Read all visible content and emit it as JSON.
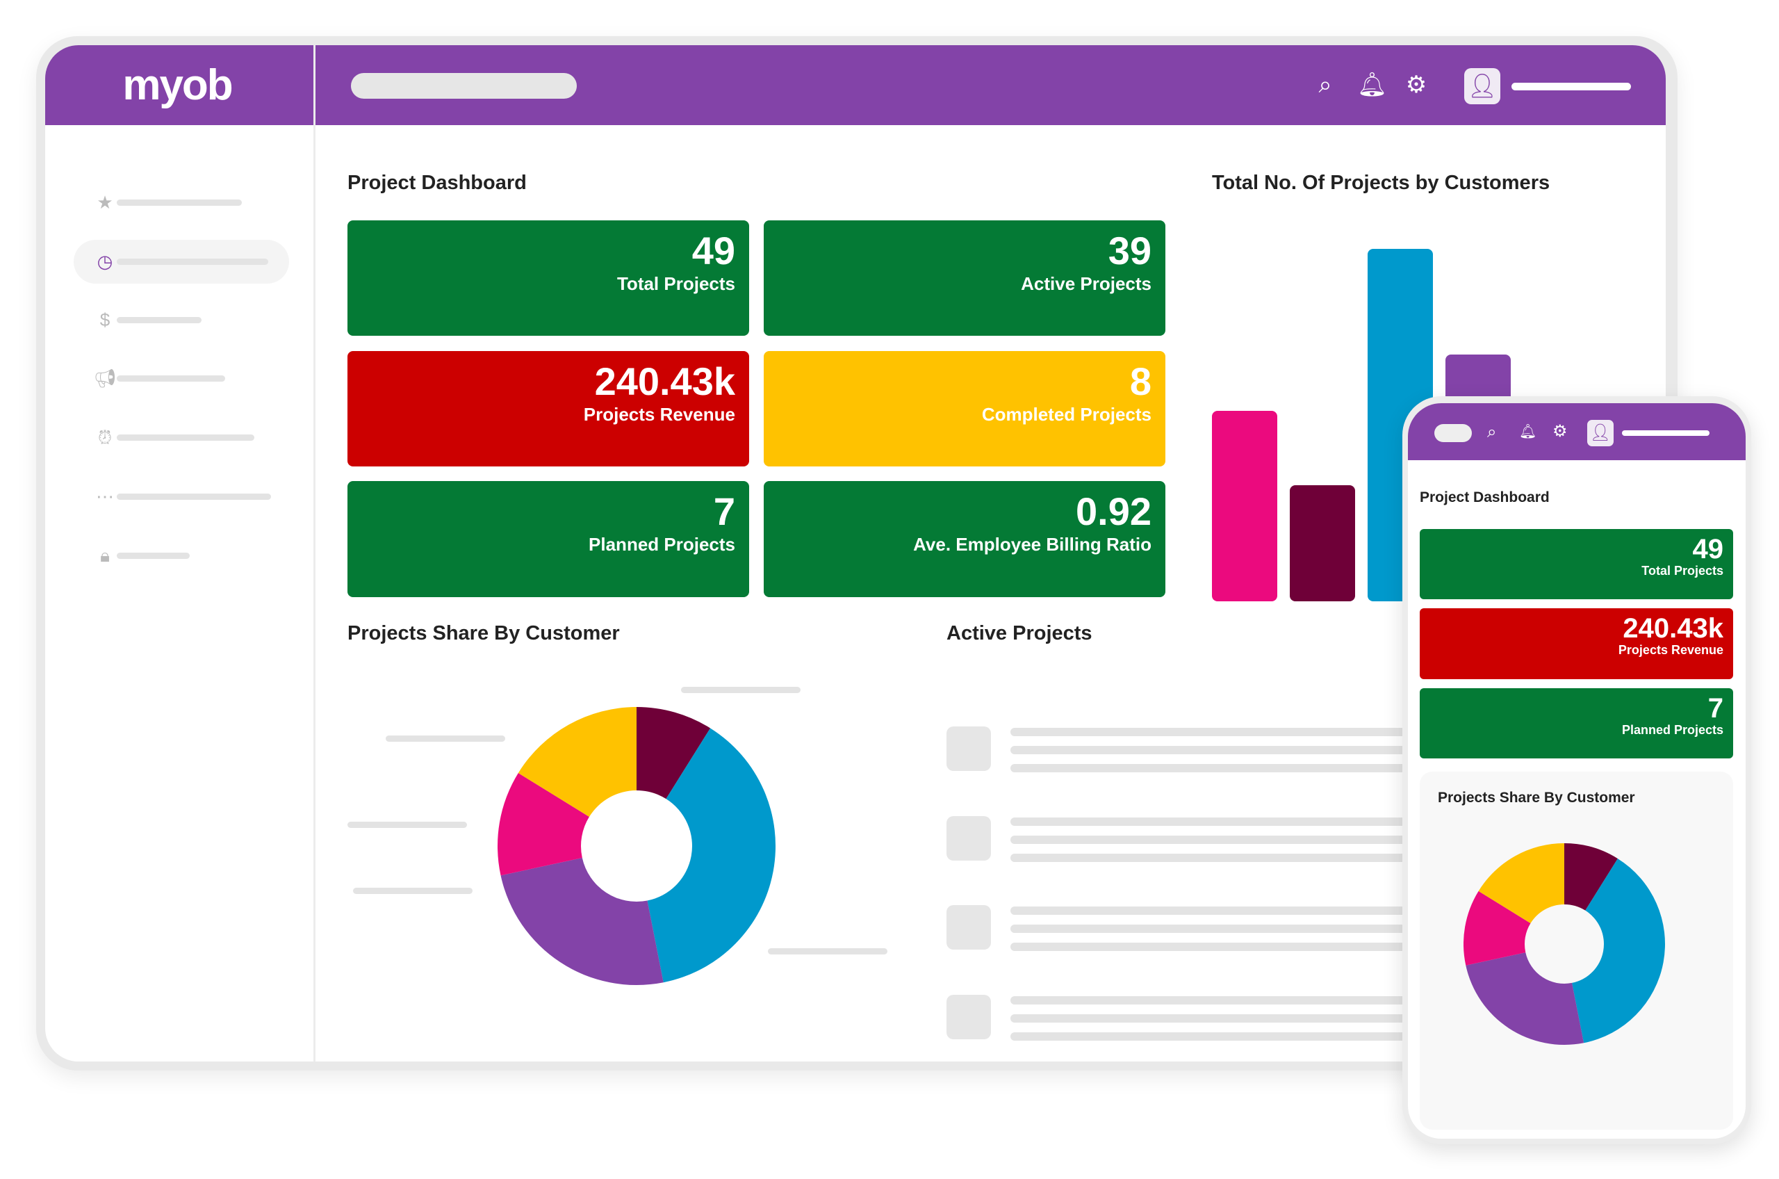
{
  "brand": {
    "logo": "myob"
  },
  "colors": {
    "header": "#8343a8",
    "green": "#047a35",
    "red": "#cc0000",
    "yellow": "#ffc200",
    "pink": "#eb0a7e",
    "maroon": "#6f0038",
    "blue": "#0099cc",
    "purple": "#8343a8"
  },
  "header": {
    "icons": [
      "search-icon",
      "bell-icon",
      "gear-icon",
      "user-icon"
    ]
  },
  "sidebar": {
    "items": [
      {
        "icon": "star-icon"
      },
      {
        "icon": "clock-icon",
        "active": true
      },
      {
        "icon": "dollar-icon"
      },
      {
        "icon": "megaphone-icon"
      },
      {
        "icon": "alarm-icon"
      },
      {
        "icon": "more-icon"
      },
      {
        "icon": "lock-icon"
      }
    ]
  },
  "main": {
    "title": "Project Dashboard",
    "cards": [
      {
        "value": "49",
        "label": "Total Projects",
        "color": "green"
      },
      {
        "value": "39",
        "label": "Active Projects",
        "color": "green"
      },
      {
        "value": "240.43k",
        "label": "Projects Revenue",
        "color": "red"
      },
      {
        "value": "8",
        "label": "Completed Projects",
        "color": "yellow"
      },
      {
        "value": "7",
        "label": "Planned Projects",
        "color": "green"
      },
      {
        "value": "0.92",
        "label": "Ave. Employee Billing Ratio",
        "color": "green"
      }
    ],
    "bar_title": "Total No. Of Projects by Customers",
    "pie_title": "Projects Share By Customer",
    "active_title": "Active Projects"
  },
  "mobile": {
    "title": "Project Dashboard",
    "cards": [
      {
        "value": "49",
        "label": "Total Projects"
      },
      {
        "value": "240.43k",
        "label": "Projects Revenue"
      },
      {
        "value": "7",
        "label": "Planned Projects"
      }
    ],
    "pie_title": "Projects Share By Customer"
  },
  "chart_data": [
    {
      "type": "bar",
      "title": "Total No. Of Projects by Customers",
      "relative_values": [
        54,
        33,
        100,
        70
      ],
      "colors": [
        "#eb0a7e",
        "#6f0038",
        "#0099cc",
        "#8343a8"
      ]
    },
    {
      "type": "pie",
      "title": "Projects Share By Customer",
      "donut": true,
      "values": [
        8.9,
        38.0,
        24.7,
        12.2,
        16.2
      ],
      "colors": [
        "#6f0038",
        "#0099cc",
        "#8343a8",
        "#eb0a7e",
        "#ffc200"
      ]
    }
  ]
}
